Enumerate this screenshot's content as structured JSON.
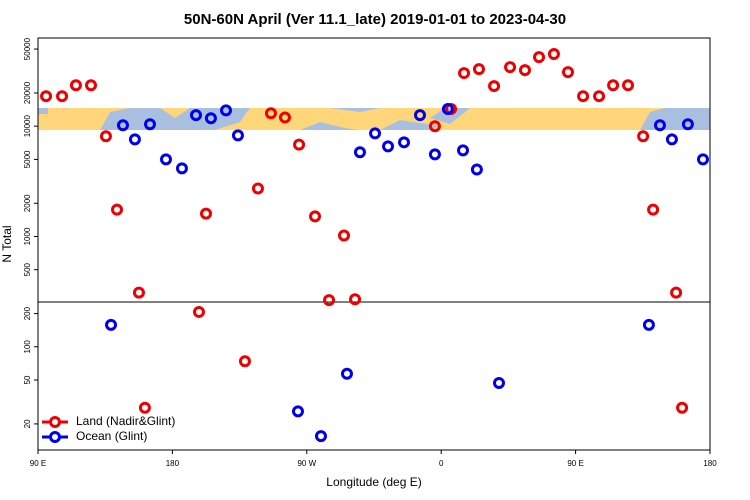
{
  "chart_data": {
    "type": "scatter",
    "title": "50N-60N April (Ver 11.1_late)   2019-01-01 to 2023-04-30",
    "xlabel": "Longitude (deg E)",
    "ylabel": "N Total",
    "log_y": true,
    "legend": "lower left",
    "xlim": [
      90,
      540
    ],
    "xticks": [
      {
        "value": 90,
        "label": "90 E"
      },
      180,
      {
        "value": 270,
        "label": "90 W"
      },
      {
        "value": 360,
        "label": "0"
      },
      {
        "value": 450,
        "label": "90 E"
      },
      {
        "value": 540,
        "label": "180"
      }
    ],
    "ylim": [
      11.6,
      63000
    ],
    "yticks": [
      20,
      50,
      100,
      200,
      500,
      1000,
      2000,
      5000,
      10000,
      20000,
      50000
    ],
    "series": [
      {
        "name": "Land (Nadir&Glint)",
        "color": "#ee0000",
        "x": [
          95.4,
          106.1,
          115.4,
          125.5,
          135.5,
          142.9,
          157.6,
          161.6,
          197.8,
          202.5,
          228.6,
          237.3,
          246.0,
          255.4,
          264.8,
          275.5,
          284.9,
          294.9,
          302.3,
          355.8,
          366.6,
          375.3,
          385.3,
          395.4,
          406.1,
          416.1,
          425.5,
          435.5,
          444.9,
          455.0,
          465.7,
          475.1,
          485.1,
          495.2,
          501.9,
          517.3,
          521.3
        ],
        "values": [
          18700,
          18700,
          23500,
          23500,
          8100,
          1750,
          310,
          28,
          207,
          1610,
          74,
          2720,
          13100,
          12000,
          6800,
          1520,
          265,
          1020,
          270,
          9980,
          14300,
          30300,
          32900,
          23100,
          34300,
          32200,
          42300,
          45100,
          30900,
          18700,
          18700,
          23500,
          23500,
          8100,
          1750,
          310,
          28
        ]
      },
      {
        "name": "Ocean (Glint)",
        "color": "#0000ee",
        "x": [
          138.9,
          146.9,
          154.9,
          165.0,
          175.7,
          186.4,
          195.8,
          205.8,
          215.9,
          223.9,
          264.1,
          279.5,
          296.9,
          305.6,
          315.7,
          324.4,
          335.1,
          345.8,
          355.8,
          364.5,
          374.6,
          383.9,
          398.7,
          499.1,
          506.5,
          514.5,
          525.2,
          535.3
        ],
        "values": [
          158,
          10200,
          7600,
          10400,
          5000,
          4140,
          12600,
          11800,
          13900,
          8260,
          26,
          15.5,
          57,
          5800,
          8610,
          6560,
          7140,
          12600,
          5550,
          14300,
          6040,
          4050,
          47,
          158,
          10200,
          7600,
          10400,
          5000
        ]
      }
    ]
  }
}
